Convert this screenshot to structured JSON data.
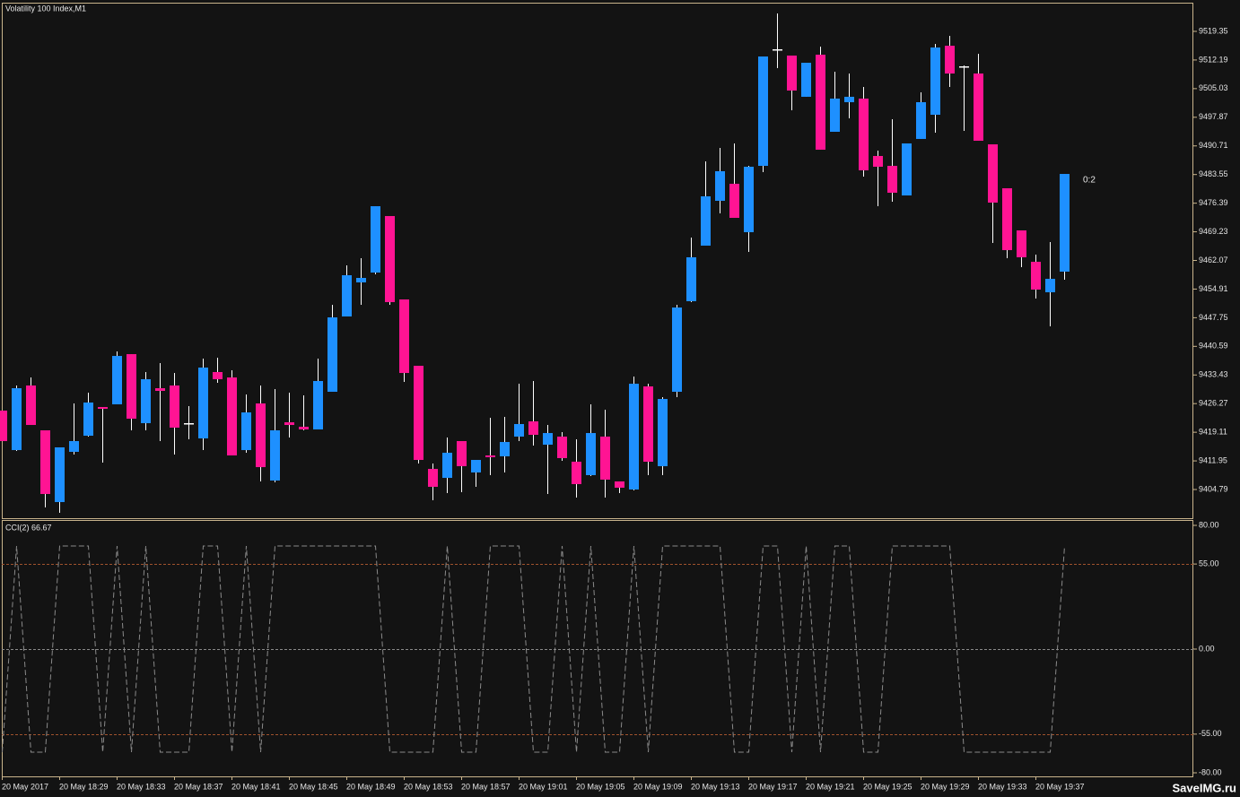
{
  "chart_data": [
    {
      "type": "candlestick",
      "title": "Volatility 100 Index,M1",
      "categories": [
        "20 May 2017",
        null,
        null,
        null,
        "20 May 18:29",
        null,
        null,
        null,
        "20 May 18:33",
        null,
        null,
        null,
        "20 May 18:37",
        null,
        null,
        null,
        "20 May 18:41",
        null,
        null,
        null,
        "20 May 18:45",
        null,
        null,
        null,
        "20 May 18:49",
        null,
        null,
        null,
        "20 May 18:53",
        null,
        null,
        null,
        "20 May 18:57",
        null,
        null,
        null,
        "20 May 19:01",
        null,
        null,
        null,
        "20 May 19:05",
        null,
        null,
        null,
        "20 May 19:09",
        null,
        null,
        null,
        "20 May 19:13",
        null,
        null,
        null,
        "20 May 19:17",
        null,
        null,
        null,
        "20 May 19:21",
        null,
        null,
        null,
        "20 May 19:25",
        null,
        null,
        null,
        "20 May 19:29",
        null,
        null,
        null,
        "20 May 19:33",
        null,
        null,
        null,
        "20 May 19:37",
        null,
        null
      ],
      "open": [
        9424.52,
        9414.65,
        9430.8,
        9419.59,
        9401.65,
        9414.21,
        9418.24,
        9425.42,
        9426.09,
        9438.64,
        9421.38,
        9430.12,
        9430.8,
        9421.38,
        9417.57,
        9434.16,
        9432.81,
        9414.65,
        9426.31,
        9407.03,
        9421.6,
        9420.48,
        9419.81,
        9429.23,
        9448.06,
        9456.58,
        9459.04,
        9473.17,
        9452.32,
        9435.73,
        9409.95,
        9407.7,
        9416.9,
        9409.05,
        9413.31,
        9413.09,
        9418.02,
        9421.83,
        9416.0,
        9418.02,
        9411.74,
        9408.38,
        9418.02,
        9406.81,
        9404.79,
        9430.57,
        9410.62,
        9429.23,
        9451.87,
        9465.77,
        9476.98,
        9481.24,
        9469.13,
        9485.72,
        9514.87,
        9513.3,
        9502.99,
        9513.52,
        9494.24,
        9501.64,
        9502.54,
        9488.19,
        9485.72,
        9478.32,
        9492.45,
        9498.5,
        9515.76,
        9510.61,
        9508.81,
        9491.1,
        9480.12,
        9469.58,
        9461.73,
        9454.11,
        9459.27
      ],
      "high": [
        9424.52,
        9430.8,
        9432.81,
        9419.59,
        9415.33,
        9426.31,
        9429.0,
        9425.42,
        9439.32,
        9438.64,
        9434.16,
        9436.4,
        9433.93,
        9425.64,
        9437.52,
        9437.75,
        9434.61,
        9428.55,
        9430.8,
        9429.9,
        9429.0,
        9428.33,
        9437.52,
        9450.97,
        9460.84,
        9462.63,
        9475.63,
        9473.17,
        9452.32,
        9435.73,
        9411.29,
        9417.79,
        9416.9,
        9412.19,
        9422.73,
        9422.95,
        9431.24,
        9431.92,
        9420.93,
        9419.14,
        9417.34,
        9426.09,
        9424.74,
        9406.81,
        9433.04,
        9431.24,
        9427.88,
        9450.97,
        9467.79,
        9486.84,
        9490.21,
        9491.33,
        9485.72,
        9513.07,
        9523.83,
        9513.3,
        9511.5,
        9515.54,
        9509.26,
        9508.81,
        9505.45,
        9489.53,
        9497.38,
        9491.33,
        9504.11,
        9516.21,
        9518.23,
        9510.83,
        9513.75,
        9491.1,
        9480.12,
        9469.58,
        9463.53,
        9466.67,
        9483.7
      ],
      "low": [
        9416.9,
        9414.43,
        9420.93,
        9400.31,
        9398.96,
        9413.53,
        9418.02,
        9411.52,
        9426.09,
        9419.59,
        9419.59,
        9416.9,
        9413.53,
        9417.34,
        9414.65,
        9431.47,
        9413.31,
        9413.98,
        9406.81,
        9406.58,
        9417.79,
        9419.59,
        9419.81,
        9429.23,
        9448.06,
        9450.97,
        9458.6,
        9450.97,
        9431.69,
        9411.29,
        9402.1,
        9403.89,
        9404.12,
        9405.46,
        9408.38,
        9409.05,
        9416.9,
        9415.78,
        9403.67,
        9411.96,
        9402.77,
        9408.15,
        9402.77,
        9403.89,
        9404.57,
        9408.38,
        9408.38,
        9427.88,
        9451.65,
        9465.77,
        9473.84,
        9472.72,
        9464.2,
        9484.15,
        9510.16,
        9499.62,
        9502.99,
        9489.76,
        9494.24,
        9497.6,
        9483.03,
        9475.63,
        9476.75,
        9478.32,
        9492.45,
        9494.02,
        9505.45,
        9494.47,
        9492.0,
        9466.44,
        9462.63,
        9460.39,
        9452.54,
        9445.59,
        9457.25
      ],
      "close": [
        9416.9,
        9430.12,
        9420.93,
        9403.67,
        9415.33,
        9416.9,
        9426.54,
        9424.97,
        9438.19,
        9422.5,
        9432.37,
        9429.45,
        9420.26,
        9421.38,
        9435.28,
        9432.37,
        9413.31,
        9424.07,
        9410.39,
        9419.59,
        9420.93,
        9419.81,
        9431.92,
        9447.83,
        9458.37,
        9457.7,
        9475.63,
        9451.65,
        9433.93,
        9412.19,
        9405.46,
        9413.98,
        9410.62,
        9412.19,
        9412.86,
        9416.67,
        9421.16,
        9418.47,
        9418.91,
        9412.64,
        9406.14,
        9418.91,
        9407.26,
        9405.24,
        9431.24,
        9411.74,
        9427.43,
        9450.3,
        9462.86,
        9478.1,
        9484.38,
        9472.72,
        9485.5,
        9513.07,
        9514.87,
        9504.55,
        9511.5,
        9489.76,
        9502.54,
        9502.99,
        9484.6,
        9485.5,
        9479.0,
        9491.33,
        9501.64,
        9515.32,
        9508.81,
        9510.61,
        9492.0,
        9476.53,
        9464.65,
        9462.86,
        9454.78,
        9457.47,
        9483.7
      ],
      "up_color": "#1e90ff",
      "down_color": "#ff1493",
      "wick_color": "#ffffff",
      "ylim": [
        9397.62,
        9526.52
      ],
      "yticks": [
        9404.79,
        9411.95,
        9419.11,
        9426.27,
        9433.43,
        9440.59,
        9447.75,
        9454.91,
        9462.07,
        9469.23,
        9476.39,
        9483.55,
        9490.71,
        9497.87,
        9505.03,
        9512.19,
        9519.35
      ],
      "timer_label": "0:2"
    },
    {
      "type": "line",
      "title": "CCI(2) 66.67",
      "color": "#8a8a8a",
      "values": [
        -66.67,
        66.67,
        -66.67,
        -66.67,
        66.67,
        66.67,
        66.67,
        -66.67,
        66.67,
        -66.67,
        66.67,
        -66.67,
        -66.67,
        -66.67,
        66.67,
        66.67,
        -66.67,
        66.67,
        -66.67,
        66.67,
        66.67,
        66.67,
        66.67,
        66.67,
        66.67,
        66.67,
        66.67,
        -66.67,
        -66.67,
        -66.67,
        -66.67,
        66.67,
        -66.67,
        -66.67,
        66.67,
        66.67,
        66.67,
        -66.67,
        -66.67,
        66.67,
        -66.67,
        66.67,
        -66.67,
        -66.67,
        66.67,
        -66.67,
        66.67,
        66.67,
        66.67,
        66.67,
        66.67,
        -66.67,
        -66.67,
        66.67,
        66.67,
        -66.67,
        66.67,
        -66.67,
        66.67,
        66.67,
        -66.67,
        -66.67,
        66.67,
        66.67,
        66.67,
        66.67,
        66.67,
        -66.67,
        -66.67,
        -66.67,
        -66.67,
        -66.67,
        -66.67,
        -66.67,
        66.67
      ],
      "ylim": [
        -82.32,
        82.9
      ],
      "yticks": [
        {
          "value": 80,
          "label": "80.00"
        },
        {
          "value": 55,
          "label": "55.00"
        },
        {
          "value": 0,
          "label": "0.00"
        },
        {
          "value": -55,
          "label": "-55.00"
        },
        {
          "value": -80,
          "label": "-80.00"
        }
      ],
      "levels": [
        {
          "value": 55,
          "color": "#a0522d"
        },
        {
          "value": 0,
          "color": "#8a8a8a"
        },
        {
          "value": -55,
          "color": "#a0522d"
        }
      ]
    }
  ],
  "watermark": "SaveIMG.ru"
}
